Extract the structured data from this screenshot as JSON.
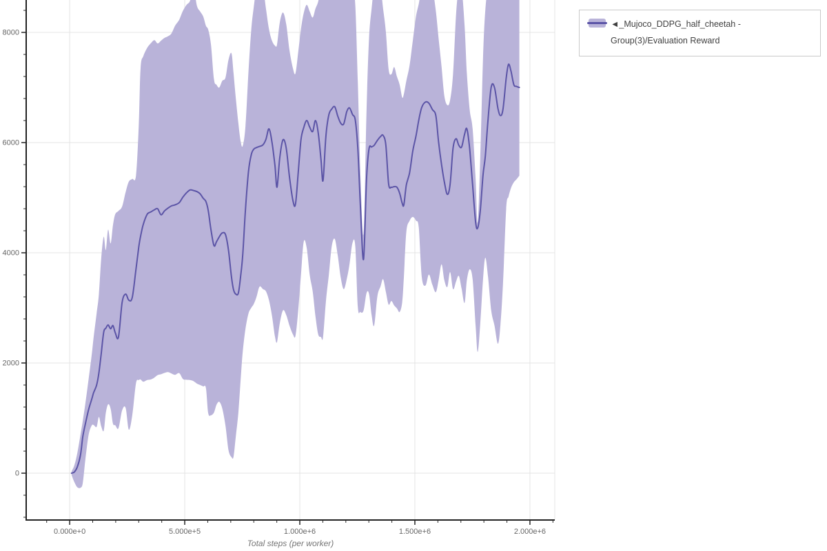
{
  "colors": {
    "background": "#ffffff",
    "band_fill": "#b9b3d9",
    "line_stroke": "#5b54a6",
    "grid_line": "#e4e4e4",
    "axis_line": "#222222",
    "tick_label": "#666666",
    "axis_title": "#757575",
    "legend_border": "#c9c9c9",
    "legend_text": "#3f3f3f"
  },
  "legend": {
    "label": "◄_Mujoco_DDPG_half_cheetah - Group(3)/Evaluation Reward"
  },
  "chart_data": {
    "type": "line",
    "title": "",
    "xlabel": "Total steps (per worker)",
    "ylabel": "",
    "grid": true,
    "legend_position": "top-right",
    "x_range": [
      -189000,
      2108000
    ],
    "y_range": [
      -850,
      8588
    ],
    "x_major_ticks": [
      {
        "v": 0,
        "label": "0.000e+0"
      },
      {
        "v": 500000,
        "label": "5.000e+5"
      },
      {
        "v": 1000000,
        "label": "1.000e+6"
      },
      {
        "v": 1500000,
        "label": "1.500e+6"
      },
      {
        "v": 2000000,
        "label": "2.000e+6"
      }
    ],
    "x_minor_ticks": [
      -100000,
      100000,
      200000,
      300000,
      400000,
      600000,
      700000,
      800000,
      900000,
      1100000,
      1200000,
      1300000,
      1400000,
      1600000,
      1700000,
      1800000,
      1900000,
      2100000
    ],
    "y_major_ticks": [
      {
        "v": 0,
        "label": "0"
      },
      {
        "v": 2000,
        "label": "2000"
      },
      {
        "v": 4000,
        "label": "4000"
      },
      {
        "v": 6000,
        "label": "6000"
      },
      {
        "v": 8000,
        "label": "8000"
      }
    ],
    "y_minor_ticks": [
      -800,
      -400,
      400,
      800,
      1200,
      1600,
      2400,
      2800,
      3200,
      3600,
      4400,
      4800,
      5200,
      5600,
      6400,
      6800,
      7200,
      7600,
      8400
    ],
    "series": [
      {
        "name": "◄_Mujoco_DDPG_half_cheetah - Group(3)/Evaluation Reward",
        "band": "min-max",
        "steps": [
          8000,
          20000,
          33000,
          47000,
          57000,
          68000,
          82000,
          95000,
          104000,
          117000,
          127000,
          137000,
          148000,
          157000,
          167000,
          178000,
          188000,
          198000,
          212000,
          228000,
          243000,
          257000,
          272000,
          288000,
          300000,
          308000,
          320000,
          337000,
          352000,
          368000,
          382000,
          397000,
          412000,
          427000,
          442000,
          458000,
          476000,
          492000,
          508000,
          523000,
          538000,
          553000,
          567000,
          580000,
          592000,
          602000,
          614000,
          627000,
          638000,
          650000,
          663000,
          677000,
          690000,
          703000,
          712000,
          722000,
          733000,
          743000,
          752000,
          764000,
          777000,
          789000,
          800000,
          812000,
          825000,
          840000,
          853000,
          866000,
          879000,
          892000,
          901000,
          913000,
          927000,
          941000,
          955000,
          970000,
          981000,
          993000,
          1005000,
          1017000,
          1030000,
          1043000,
          1056000,
          1068000,
          1080000,
          1092000,
          1101000,
          1113000,
          1126000,
          1139000,
          1152000,
          1165000,
          1178000,
          1191000,
          1204000,
          1216000,
          1229000,
          1241000,
          1252000,
          1263000,
          1277000,
          1290000,
          1301000,
          1312000,
          1323000,
          1337000,
          1351000,
          1362000,
          1374000,
          1386000,
          1398000,
          1410000,
          1422000,
          1434000,
          1445000,
          1452000,
          1463000,
          1477000,
          1491000,
          1505000,
          1517000,
          1530000,
          1546000,
          1561000,
          1576000,
          1591000,
          1603000,
          1616000,
          1628000,
          1641000,
          1653000,
          1666000,
          1679000,
          1691000,
          1703000,
          1716000,
          1726000,
          1738000,
          1751000,
          1764000,
          1773000,
          1784000,
          1796000,
          1806000,
          1818000,
          1832000,
          1846000,
          1861000,
          1872000,
          1883000,
          1897000,
          1907000,
          1918000,
          1930000,
          1941000,
          1954000
        ],
        "mean": [
          0,
          20,
          110,
          330,
          660,
          890,
          1150,
          1330,
          1460,
          1600,
          1820,
          2170,
          2560,
          2630,
          2690,
          2620,
          2680,
          2550,
          2470,
          3100,
          3250,
          3140,
          3190,
          3700,
          4100,
          4300,
          4520,
          4700,
          4740,
          4780,
          4800,
          4690,
          4760,
          4810,
          4850,
          4870,
          4910,
          5010,
          5090,
          5140,
          5130,
          5110,
          5070,
          4990,
          4930,
          4770,
          4420,
          4130,
          4200,
          4290,
          4360,
          4330,
          4050,
          3560,
          3330,
          3250,
          3270,
          3580,
          3960,
          4790,
          5480,
          5780,
          5880,
          5910,
          5930,
          5960,
          6060,
          6250,
          6010,
          5580,
          5190,
          5730,
          6050,
          5900,
          5380,
          4950,
          4880,
          5450,
          6050,
          6270,
          6400,
          6280,
          6200,
          6400,
          6180,
          5700,
          5310,
          6100,
          6500,
          6610,
          6650,
          6480,
          6350,
          6340,
          6560,
          6630,
          6510,
          6410,
          5900,
          4890,
          3880,
          5350,
          5890,
          5920,
          5950,
          6040,
          6110,
          6130,
          5950,
          5250,
          5190,
          5200,
          5190,
          5080,
          4900,
          4870,
          5230,
          5450,
          5850,
          6120,
          6410,
          6640,
          6735,
          6715,
          6600,
          6490,
          6010,
          5600,
          5290,
          5060,
          5240,
          5900,
          6070,
          5950,
          5920,
          6150,
          6250,
          5890,
          5230,
          4560,
          4450,
          4750,
          5400,
          5750,
          6420,
          7010,
          7000,
          6620,
          6490,
          6610,
          7170,
          7420,
          7290,
          7050,
          7020,
          7000
        ],
        "lower": [
          -30,
          -160,
          -255,
          -265,
          -180,
          240,
          690,
          860,
          875,
          840,
          1020,
          850,
          770,
          1090,
          1250,
          1170,
          900,
          870,
          815,
          1140,
          1185,
          790,
          1050,
          1630,
          1690,
          1700,
          1660,
          1690,
          1700,
          1735,
          1780,
          1795,
          1820,
          1835,
          1810,
          1785,
          1815,
          1710,
          1695,
          1690,
          1670,
          1625,
          1600,
          1575,
          1545,
          1090,
          1050,
          1100,
          1240,
          1295,
          1175,
          860,
          420,
          290,
          300,
          670,
          1100,
          1700,
          2200,
          2620,
          2900,
          3000,
          3070,
          3200,
          3385,
          3340,
          3300,
          3140,
          2860,
          2480,
          2380,
          2720,
          2955,
          2870,
          2680,
          2520,
          2490,
          2950,
          3600,
          4200,
          4090,
          3600,
          3300,
          2850,
          2520,
          2470,
          2465,
          3100,
          3590,
          4120,
          4250,
          3950,
          3545,
          3340,
          3520,
          3790,
          4180,
          4120,
          3020,
          2925,
          2950,
          3270,
          3250,
          2870,
          2680,
          3210,
          3390,
          3520,
          3290,
          3060,
          3125,
          3045,
          2990,
          2925,
          3100,
          3550,
          4380,
          4580,
          4650,
          4585,
          4455,
          3560,
          3405,
          3605,
          3420,
          3285,
          3500,
          3790,
          3505,
          3380,
          3650,
          3340,
          3480,
          3580,
          3350,
          3090,
          3500,
          3700,
          3520,
          2680,
          2200,
          2700,
          3500,
          3910,
          3560,
          2950,
          2680,
          2350,
          2700,
          3450,
          4800,
          5020,
          5180,
          5280,
          5330,
          5400
        ],
        "upper": [
          30,
          140,
          360,
          700,
          950,
          1260,
          1700,
          2120,
          2460,
          2900,
          3250,
          3900,
          4290,
          4050,
          4420,
          4170,
          4500,
          4700,
          4760,
          4840,
          5100,
          5290,
          5340,
          5400,
          6300,
          7350,
          7570,
          7720,
          7800,
          7860,
          7800,
          7850,
          7900,
          7930,
          7980,
          8120,
          8230,
          8390,
          8500,
          8570,
          8800,
          8480,
          8380,
          8290,
          8120,
          8050,
          7780,
          7150,
          7050,
          7000,
          7120,
          7180,
          7500,
          7620,
          7260,
          6800,
          6350,
          6020,
          5940,
          6300,
          7300,
          8050,
          8460,
          8800,
          8800,
          8800,
          8430,
          8060,
          7850,
          7760,
          7780,
          8180,
          8360,
          8150,
          7680,
          7350,
          7255,
          7640,
          8060,
          8350,
          8500,
          8380,
          8270,
          8430,
          8560,
          8800,
          8800,
          8800,
          8800,
          8800,
          8800,
          8800,
          8800,
          8800,
          8800,
          8800,
          8800,
          8500,
          7100,
          5500,
          4350,
          6600,
          7900,
          8430,
          8800,
          8800,
          8800,
          8430,
          8010,
          7330,
          7240,
          7370,
          7200,
          7050,
          6820,
          6880,
          7120,
          7400,
          7850,
          8290,
          8520,
          8800,
          8800,
          8800,
          8800,
          8390,
          7890,
          7380,
          6850,
          6680,
          6770,
          7250,
          8330,
          8800,
          8800,
          8130,
          7260,
          6600,
          6250,
          5350,
          4550,
          5700,
          7500,
          8400,
          8800,
          8800,
          8800,
          8800,
          8800,
          8800,
          8800,
          8800,
          8800,
          8800,
          8800,
          8800
        ]
      }
    ]
  }
}
